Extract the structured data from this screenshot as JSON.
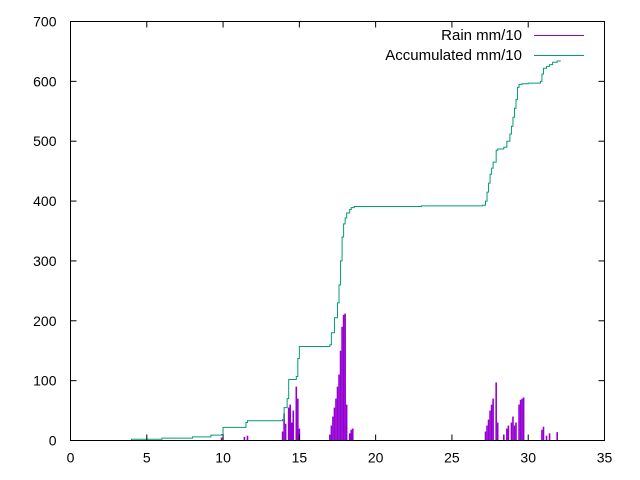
{
  "chart_data": {
    "type": "line",
    "title": "",
    "xlabel": "",
    "ylabel": "",
    "xlim": [
      0,
      35
    ],
    "ylim": [
      0,
      700
    ],
    "x_ticks": [
      0,
      5,
      10,
      15,
      20,
      25,
      30,
      35
    ],
    "y_ticks": [
      0,
      100,
      200,
      300,
      400,
      500,
      600,
      700
    ],
    "grid": false,
    "legend_position": "top-right",
    "series": [
      {
        "name": "Rain mm/10",
        "style": "impulses",
        "color": "#9400d3",
        "points": [
          [
            9.9,
            5
          ],
          [
            11.4,
            6
          ],
          [
            11.6,
            8
          ],
          [
            13.9,
            15
          ],
          [
            14.0,
            45
          ],
          [
            14.1,
            28
          ],
          [
            14.3,
            55
          ],
          [
            14.4,
            60
          ],
          [
            14.5,
            30
          ],
          [
            14.6,
            50
          ],
          [
            14.8,
            90
          ],
          [
            14.9,
            70
          ],
          [
            15.0,
            20
          ],
          [
            17.0,
            10
          ],
          [
            17.1,
            25
          ],
          [
            17.2,
            40
          ],
          [
            17.3,
            55
          ],
          [
            17.4,
            70
          ],
          [
            17.5,
            90
          ],
          [
            17.6,
            110
          ],
          [
            17.7,
            150
          ],
          [
            17.8,
            190
          ],
          [
            17.9,
            210
          ],
          [
            18.0,
            212
          ],
          [
            18.1,
            60
          ],
          [
            18.3,
            12
          ],
          [
            18.4,
            18
          ],
          [
            18.5,
            20
          ],
          [
            27.2,
            15
          ],
          [
            27.3,
            25
          ],
          [
            27.4,
            35
          ],
          [
            27.5,
            50
          ],
          [
            27.6,
            60
          ],
          [
            27.7,
            70
          ],
          [
            27.9,
            97
          ],
          [
            28.0,
            30
          ],
          [
            28.4,
            10
          ],
          [
            28.6,
            20
          ],
          [
            28.7,
            25
          ],
          [
            28.9,
            30
          ],
          [
            29.0,
            40
          ],
          [
            29.1,
            25
          ],
          [
            29.2,
            30
          ],
          [
            29.4,
            60
          ],
          [
            29.5,
            68
          ],
          [
            29.6,
            70
          ],
          [
            29.7,
            72
          ],
          [
            30.9,
            18
          ],
          [
            31.0,
            23
          ],
          [
            31.2,
            8
          ],
          [
            31.4,
            12
          ],
          [
            31.9,
            14
          ]
        ]
      },
      {
        "name": "Accumulated mm/10",
        "style": "steps",
        "color": "#009e73",
        "points": [
          [
            2.0,
            0
          ],
          [
            4.0,
            2
          ],
          [
            6.0,
            4
          ],
          [
            8.0,
            6
          ],
          [
            9.2,
            9
          ],
          [
            9.9,
            10
          ],
          [
            10.0,
            22
          ],
          [
            11.5,
            30
          ],
          [
            11.6,
            33
          ],
          [
            13.9,
            35
          ],
          [
            14.0,
            55
          ],
          [
            14.2,
            70
          ],
          [
            14.3,
            102
          ],
          [
            14.8,
            107
          ],
          [
            14.9,
            137
          ],
          [
            15.0,
            157
          ],
          [
            17.0,
            160
          ],
          [
            17.1,
            180
          ],
          [
            17.3,
            205
          ],
          [
            17.5,
            230
          ],
          [
            17.6,
            260
          ],
          [
            17.7,
            300
          ],
          [
            17.8,
            340
          ],
          [
            17.9,
            362
          ],
          [
            18.0,
            372
          ],
          [
            18.1,
            380
          ],
          [
            18.3,
            386
          ],
          [
            18.4,
            389
          ],
          [
            18.6,
            391
          ],
          [
            23.0,
            392
          ],
          [
            27.0,
            393
          ],
          [
            27.2,
            400
          ],
          [
            27.3,
            415
          ],
          [
            27.4,
            430
          ],
          [
            27.5,
            445
          ],
          [
            27.6,
            455
          ],
          [
            27.7,
            465
          ],
          [
            27.9,
            485
          ],
          [
            28.0,
            487
          ],
          [
            28.4,
            490
          ],
          [
            28.6,
            500
          ],
          [
            28.8,
            512
          ],
          [
            28.9,
            525
          ],
          [
            29.0,
            540
          ],
          [
            29.1,
            555
          ],
          [
            29.2,
            570
          ],
          [
            29.3,
            590
          ],
          [
            29.4,
            595
          ],
          [
            29.6,
            596
          ],
          [
            30.0,
            597
          ],
          [
            30.8,
            600
          ],
          [
            30.9,
            612
          ],
          [
            31.0,
            622
          ],
          [
            31.2,
            625
          ],
          [
            31.4,
            628
          ],
          [
            31.6,
            632
          ],
          [
            31.9,
            634
          ],
          [
            32.1,
            635
          ]
        ]
      }
    ]
  }
}
